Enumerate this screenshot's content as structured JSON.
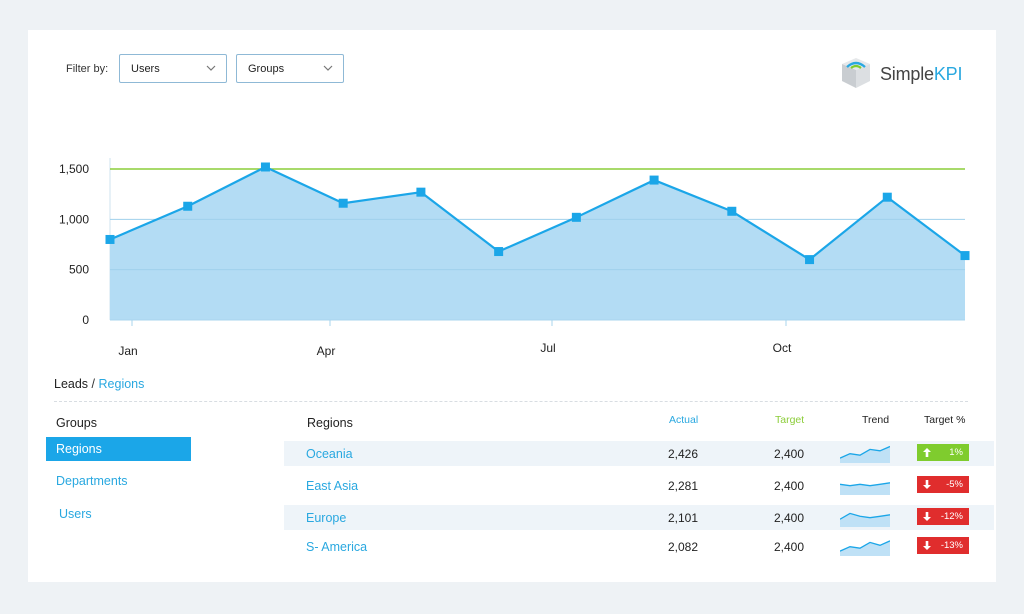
{
  "filter": {
    "label": "Filter by:",
    "users_value": "Users",
    "groups_value": "Groups"
  },
  "logo": {
    "simple": "Simple",
    "kpi": "KPI"
  },
  "colors": {
    "accent": "#29a8e0",
    "area_fill": "#b3dcf4",
    "line": "#1ba6e8",
    "target_line": "#8ccd3a",
    "up": "#7fcc2e",
    "down": "#e02d2d"
  },
  "chart_data": {
    "type": "area",
    "title": "",
    "xlabel": "",
    "ylabel": "",
    "ylim": [
      0,
      1500
    ],
    "yticks": [
      0,
      500,
      1000,
      1500
    ],
    "ytick_labels": [
      "0",
      "500",
      "1,000",
      "1,500"
    ],
    "xtick_labels": [
      "Jan",
      "Apr",
      "Jul",
      "Oct"
    ],
    "target": 1500,
    "grid": true,
    "legend": "none",
    "series": [
      {
        "values": [
          800,
          1130,
          1520,
          1160,
          1270,
          680,
          1020,
          1390,
          1080,
          600,
          1220,
          640
        ]
      }
    ]
  },
  "breadcrumb": {
    "root": "Leads",
    "sep": "/",
    "current": "Regions"
  },
  "groups": {
    "title": "Groups",
    "items": [
      "Regions",
      "Departments",
      "Users"
    ],
    "selected": 0
  },
  "table": {
    "title": "Regions",
    "headers": {
      "actual": "Actual",
      "target": "Target",
      "trend": "Trend",
      "target_pct": "Target %"
    },
    "rows": [
      {
        "region": "Oceania",
        "actual": "2,426",
        "target": "2,400",
        "pct": "1%",
        "dir": "up",
        "trend": [
          2,
          5,
          4,
          8,
          7,
          10
        ]
      },
      {
        "region": "East Asia",
        "actual": "2,281",
        "target": "2,400",
        "pct": "-5%",
        "dir": "down",
        "trend": [
          6,
          5,
          6,
          5,
          6,
          7
        ]
      },
      {
        "region": "Europe",
        "actual": "2,101",
        "target": "2,400",
        "pct": "-12%",
        "dir": "down",
        "trend": [
          4,
          8,
          6,
          5,
          6,
          7
        ]
      },
      {
        "region": "S- America",
        "actual": "2,082",
        "target": "2,400",
        "pct": "-13%",
        "dir": "down",
        "trend": [
          2,
          5,
          4,
          8,
          6,
          9
        ]
      }
    ]
  }
}
